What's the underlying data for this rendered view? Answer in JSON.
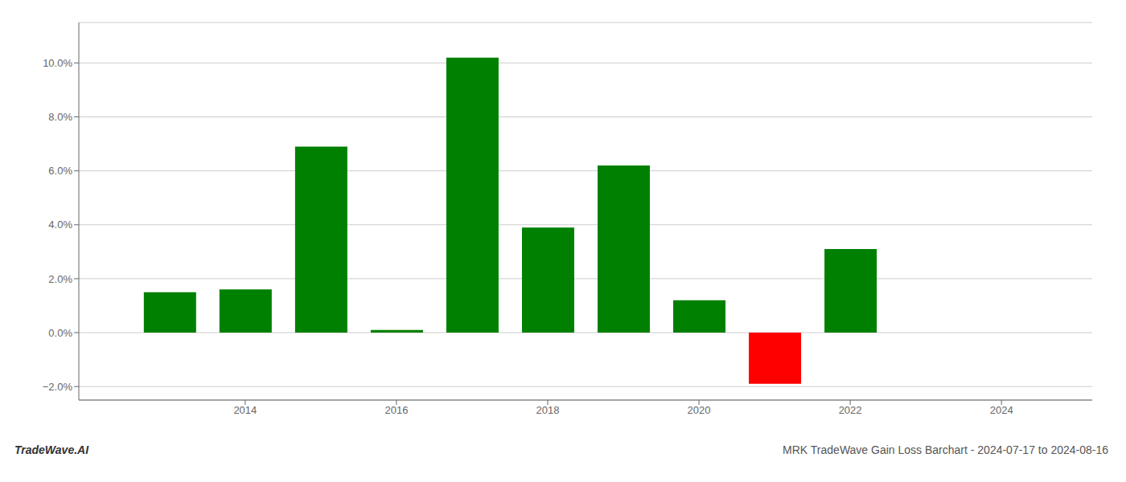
{
  "chart_data": {
    "type": "bar",
    "title": "MRK TradeWave Gain Loss Barchart - 2024-07-17 to 2024-08-16",
    "annotations": [
      "TradeWave.AI"
    ],
    "x": [
      2013,
      2014,
      2015,
      2016,
      2017,
      2018,
      2019,
      2020,
      2021,
      2022
    ],
    "values": [
      0.015,
      0.016,
      0.069,
      0.001,
      0.102,
      0.039,
      0.062,
      0.012,
      -0.019,
      0.031
    ],
    "colors": [
      "#008000",
      "#008000",
      "#008000",
      "#008000",
      "#008000",
      "#008000",
      "#008000",
      "#008000",
      "#ff0000",
      "#008000"
    ],
    "xlim": [
      2011.8,
      2025.2
    ],
    "xticks": [
      2014,
      2016,
      2018,
      2020,
      2022,
      2024
    ],
    "ylim": [
      -0.025,
      0.115
    ],
    "yticks": [
      {
        "value": -0.02,
        "label": "−2.0%"
      },
      {
        "value": 0.0,
        "label": "0.0%"
      },
      {
        "value": 0.02,
        "label": "2.0%"
      },
      {
        "value": 0.04,
        "label": "4.0%"
      },
      {
        "value": 0.06,
        "label": "6.0%"
      },
      {
        "value": 0.08,
        "label": "8.0%"
      },
      {
        "value": 0.1,
        "label": "10.0%"
      }
    ],
    "grid": true
  }
}
